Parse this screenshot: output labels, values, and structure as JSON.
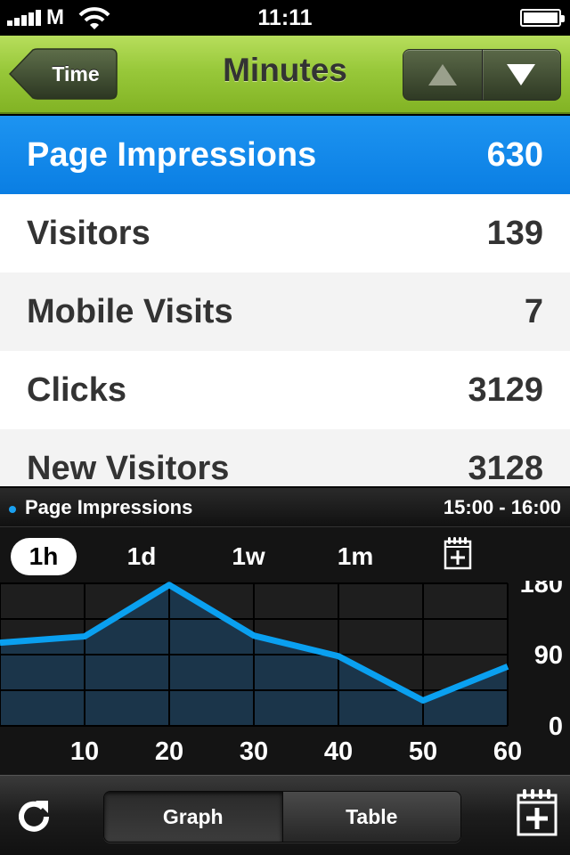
{
  "status": {
    "carrier": "M",
    "time": "11:11"
  },
  "nav": {
    "back_label": "Time",
    "title": "Minutes"
  },
  "metrics": [
    {
      "label": "Page Impressions",
      "value": "630",
      "selected": true
    },
    {
      "label": "Visitors",
      "value": "139"
    },
    {
      "label": "Mobile Visits",
      "value": "7"
    },
    {
      "label": "Clicks",
      "value": "3129"
    },
    {
      "label": "New Visitors",
      "value": "3128"
    }
  ],
  "graph_panel": {
    "series_label": "Page Impressions",
    "time_range": "15:00 - 16:00",
    "range_options": [
      "1h",
      "1d",
      "1w",
      "1m"
    ],
    "selected_range": "1h"
  },
  "chart_data": {
    "type": "area",
    "x": [
      0,
      10,
      20,
      30,
      40,
      50,
      60
    ],
    "y": [
      105,
      113,
      178,
      114,
      88,
      32,
      75
    ],
    "x_tick_labels": [
      "10",
      "20",
      "30",
      "40",
      "50",
      "60"
    ],
    "y_tick_labels": [
      "180",
      "90",
      "0"
    ],
    "ylim": [
      0,
      180
    ],
    "xlim": [
      0,
      60
    ],
    "grid": true,
    "y_axis_side": "right",
    "colors": {
      "line": "#0aa0f0",
      "fill": "#1b3a52"
    }
  },
  "toolbar": {
    "graph_label": "Graph",
    "table_label": "Table",
    "selected": "Graph"
  },
  "colors": {
    "accent": "#0a84e6",
    "nav_green": "#98c83a"
  }
}
